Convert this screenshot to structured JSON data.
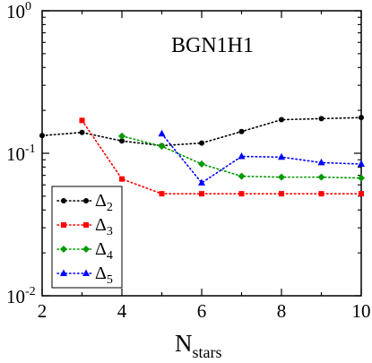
{
  "chart_data": {
    "type": "line",
    "annotation": "BGN1H1",
    "xlabel": {
      "main": "N",
      "sub": "stars"
    },
    "ylabel": "",
    "xlim": [
      2,
      10
    ],
    "ylim": [
      0.01,
      1
    ],
    "yscale": "log",
    "x_ticks": [
      2,
      4,
      6,
      8,
      10
    ],
    "x_tick_labels": [
      "2",
      "4",
      "6",
      "8",
      "10"
    ],
    "y_ticks": [
      0.01,
      0.1,
      1
    ],
    "y_tick_labels": [
      {
        "base": "10",
        "exp": "-2"
      },
      {
        "base": "10",
        "exp": "-1"
      },
      {
        "base": "10",
        "exp": "0"
      }
    ],
    "grid": false,
    "legend_position": "bottom-left",
    "series": [
      {
        "name": {
          "main": "Δ",
          "sub": "2"
        },
        "color": "#000000",
        "marker": "circle",
        "x": [
          2,
          3,
          4,
          5,
          6,
          7,
          8,
          9,
          10
        ],
        "y": [
          0.133,
          0.14,
          0.122,
          0.113,
          0.118,
          0.142,
          0.172,
          0.175,
          0.178
        ]
      },
      {
        "name": {
          "main": "Δ",
          "sub": "3"
        },
        "color": "#ff0000",
        "marker": "square",
        "x": [
          3,
          4,
          5,
          6,
          7,
          8,
          9,
          10
        ],
        "y": [
          0.17,
          0.066,
          0.052,
          0.052,
          0.052,
          0.052,
          0.052,
          0.052
        ]
      },
      {
        "name": {
          "main": "Δ",
          "sub": "4"
        },
        "color": "#009900",
        "marker": "diamond",
        "x": [
          4,
          5,
          6,
          7,
          8,
          9,
          10
        ],
        "y": [
          0.132,
          0.112,
          0.084,
          0.069,
          0.068,
          0.068,
          0.067
        ]
      },
      {
        "name": {
          "main": "Δ",
          "sub": "5"
        },
        "color": "#0000ff",
        "marker": "triangle",
        "x": [
          5,
          6,
          7,
          8,
          9,
          10
        ],
        "y": [
          0.137,
          0.062,
          0.095,
          0.094,
          0.086,
          0.084
        ]
      }
    ]
  }
}
